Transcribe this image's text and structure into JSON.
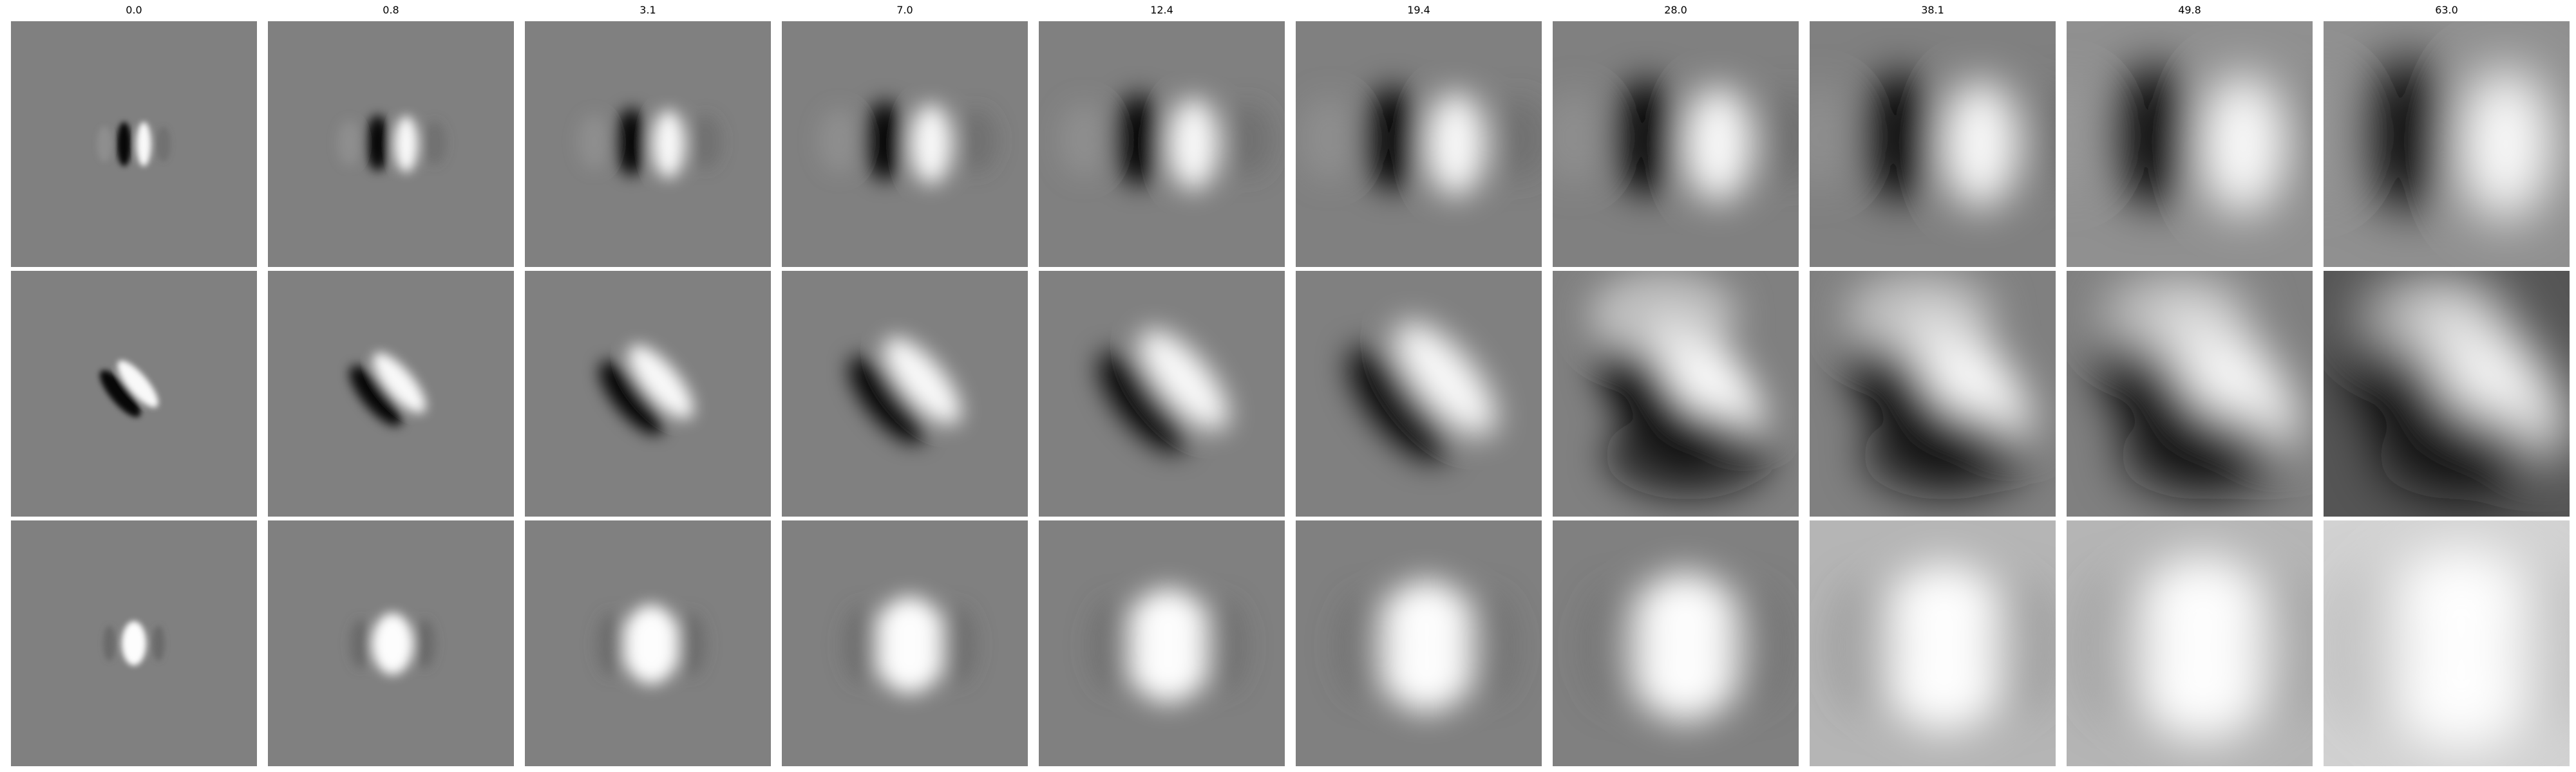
{
  "figure": {
    "column_titles": [
      "0.0",
      "0.8",
      "3.1",
      "7.0",
      "12.4",
      "19.4",
      "28.0",
      "38.1",
      "49.8",
      "63.0"
    ],
    "background": "#ffffff",
    "panel_gray": "#808080",
    "rows": [
      {
        "pattern": "vertical-dipole-dark-left-light-right",
        "panels": 10
      },
      {
        "pattern": "diagonal-dipole-dark-upper-left-light-lower-right",
        "panels": 10
      },
      {
        "pattern": "central-light-blob-with-dark-sides",
        "panels": 10
      }
    ]
  }
}
